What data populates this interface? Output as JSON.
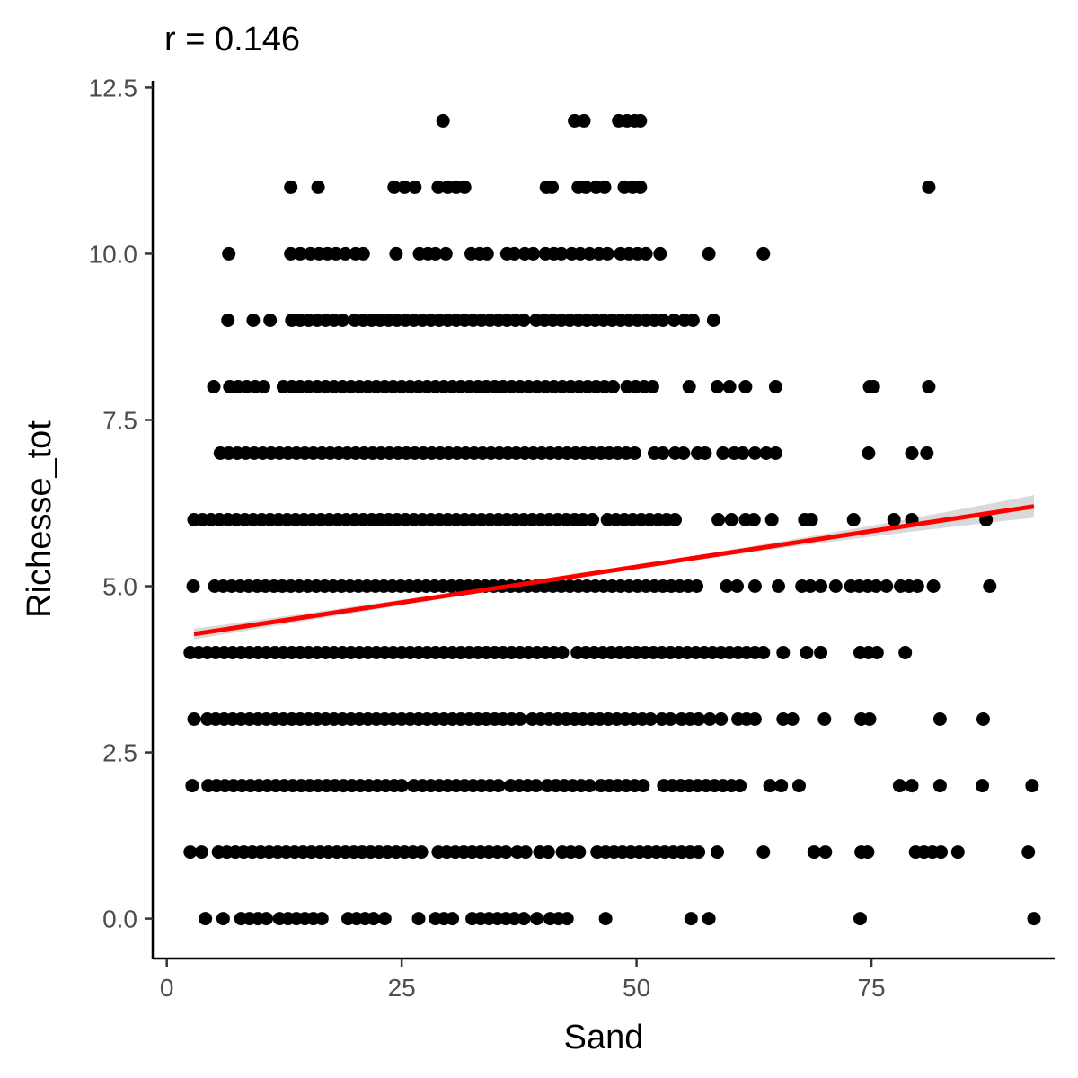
{
  "chart_data": {
    "type": "scatter",
    "title": "r = 0.146",
    "xlabel": "Sand",
    "ylabel": "Richesse_tot",
    "xlim": [
      -1.5,
      94.5
    ],
    "ylim": [
      -0.6,
      12.6
    ],
    "x_ticks": [
      0,
      25,
      50,
      75
    ],
    "x_tick_labels": [
      "0",
      "25",
      "50",
      "75"
    ],
    "y_ticks": [
      0,
      2.5,
      5,
      7.5,
      10,
      12.5
    ],
    "y_tick_labels": [
      "0.0",
      "2.5",
      "5.0",
      "7.5",
      "10.0",
      "12.5"
    ],
    "grid": false,
    "colors": {
      "points": "#000000",
      "fit_line": "#ff0000",
      "confidence_band": "#bfbfbf"
    },
    "fit": {
      "method": "linear",
      "x": [
        2.9,
        92.3
      ],
      "y": [
        4.28,
        6.2
      ],
      "ci_halfwidth_at_ends": [
        0.08,
        0.17
      ],
      "ci_halfwidth_at_center": 0.03
    },
    "series": [
      {
        "points_by_y": [
          {
            "y": 12,
            "x": [
              29.4,
              43.4,
              44.4,
              48.1,
              49.0,
              49.8,
              50.4
            ]
          },
          {
            "y": 11,
            "x": [
              13.2,
              16.1,
              24.2,
              25.3,
              26.4,
              28.9,
              29.9,
              30.8,
              31.7,
              40.4,
              41.0,
              43.8,
              44.6,
              45.7,
              46.6,
              48.7,
              49.6,
              50.4,
              81.1
            ]
          },
          {
            "y": 10,
            "x": [
              6.6,
              13.2,
              14.2,
              15.3,
              16.2,
              17.1,
              18.0,
              19.0,
              20.1,
              20.9,
              24.4,
              26.9,
              27.8,
              28.6,
              29.7,
              32.4,
              33.3,
              34.1,
              36.2,
              37.0,
              38.1,
              39.0,
              40.3,
              41.2,
              42.0,
              43.1,
              44.0,
              45.0,
              46.0,
              46.9,
              48.3,
              49.2,
              50.1,
              51.0,
              52.5,
              57.7,
              63.5
            ]
          },
          {
            "y": 9,
            "x": [
              6.5,
              9.2,
              11.0,
              13.3,
              14.2,
              15.1,
              16.0,
              16.9,
              17.8,
              18.7,
              20.0,
              20.9,
              21.8,
              22.7,
              23.6,
              24.5,
              25.4,
              26.3,
              27.2,
              28.1,
              29.0,
              29.9,
              30.8,
              31.7,
              32.6,
              33.5,
              34.4,
              35.3,
              36.2,
              37.1,
              38.0,
              39.3,
              40.2,
              41.1,
              42.0,
              42.9,
              43.8,
              44.7,
              45.6,
              46.5,
              47.4,
              48.3,
              49.2,
              50.1,
              51.0,
              51.9,
              52.8,
              54.0,
              55.1,
              56.0,
              58.2
            ]
          },
          {
            "y": 8,
            "x": [
              5.0,
              6.7,
              7.6,
              8.5,
              9.4,
              10.3,
              12.4,
              13.3,
              14.2,
              15.1,
              16.0,
              16.9,
              17.8,
              18.7,
              19.6,
              20.5,
              21.4,
              22.3,
              23.2,
              24.1,
              25.0,
              25.9,
              26.8,
              27.7,
              28.6,
              29.5,
              30.4,
              31.3,
              32.2,
              33.1,
              34.0,
              34.9,
              35.8,
              36.7,
              37.6,
              38.5,
              39.4,
              40.3,
              41.2,
              42.1,
              43.0,
              43.9,
              44.8,
              45.7,
              46.6,
              47.5,
              49.0,
              49.9,
              50.8,
              51.7,
              55.6,
              58.6,
              59.9,
              61.6,
              64.8,
              74.8,
              75.2,
              81.1
            ]
          },
          {
            "y": 7,
            "x": [
              5.7,
              6.6,
              7.5,
              8.4,
              9.3,
              10.2,
              11.1,
              12.0,
              12.9,
              13.8,
              14.7,
              15.6,
              16.5,
              17.4,
              18.3,
              19.2,
              20.1,
              21.0,
              21.9,
              22.8,
              23.7,
              24.6,
              25.5,
              26.4,
              27.3,
              28.2,
              29.1,
              30.0,
              30.9,
              31.8,
              32.7,
              33.6,
              34.5,
              35.4,
              36.3,
              37.2,
              38.1,
              39.0,
              39.9,
              40.8,
              41.7,
              42.6,
              43.5,
              44.4,
              45.3,
              46.2,
              47.1,
              48.0,
              48.9,
              49.8,
              51.9,
              52.8,
              54.1,
              55.0,
              56.5,
              57.3,
              59.2,
              60.4,
              61.3,
              62.6,
              63.8,
              64.8,
              74.7,
              79.3,
              80.9
            ]
          },
          {
            "y": 6,
            "x": [
              2.9,
              3.8,
              4.7,
              5.6,
              6.5,
              7.4,
              8.3,
              9.2,
              10.1,
              11.0,
              11.9,
              12.8,
              13.7,
              14.6,
              15.5,
              16.4,
              17.3,
              18.2,
              19.1,
              20.0,
              20.9,
              21.8,
              22.7,
              23.6,
              24.5,
              25.4,
              26.3,
              27.2,
              28.1,
              29.0,
              29.9,
              30.8,
              31.7,
              32.6,
              33.5,
              34.4,
              35.3,
              36.2,
              37.1,
              38.0,
              38.9,
              39.8,
              40.7,
              41.6,
              42.5,
              43.4,
              44.3,
              45.3,
              46.9,
              47.8,
              48.7,
              49.6,
              50.5,
              51.4,
              52.3,
              53.2,
              54.1,
              58.7,
              60.1,
              61.6,
              62.5,
              64.4,
              67.9,
              68.6,
              73.1,
              77.4,
              79.3,
              87.2
            ]
          },
          {
            "y": 5,
            "x": [
              2.8,
              5.1,
              6.0,
              6.9,
              7.8,
              8.7,
              9.6,
              10.5,
              11.4,
              12.3,
              13.2,
              14.1,
              15.0,
              15.9,
              16.8,
              17.7,
              18.6,
              19.5,
              20.4,
              21.3,
              22.2,
              23.1,
              24.0,
              24.9,
              25.8,
              26.7,
              27.6,
              28.5,
              29.4,
              30.3,
              31.2,
              32.1,
              33.0,
              33.9,
              34.8,
              35.7,
              36.6,
              37.5,
              38.4,
              39.3,
              40.2,
              41.1,
              42.0,
              42.9,
              43.8,
              44.7,
              45.6,
              46.5,
              47.4,
              48.3,
              49.2,
              50.1,
              51.0,
              51.9,
              52.8,
              53.7,
              54.6,
              55.5,
              56.4,
              59.6,
              60.7,
              62.6,
              65.1,
              67.6,
              68.5,
              69.6,
              71.2,
              72.8,
              73.7,
              74.6,
              75.5,
              76.6,
              78.1,
              79.0,
              79.9,
              81.6,
              87.6
            ]
          },
          {
            "y": 4,
            "x": [
              2.5,
              3.4,
              4.3,
              5.2,
              6.1,
              7.0,
              7.9,
              8.8,
              9.7,
              10.6,
              11.5,
              12.4,
              13.3,
              14.2,
              15.1,
              16.0,
              16.9,
              17.8,
              18.7,
              19.6,
              20.5,
              21.4,
              22.3,
              23.2,
              24.1,
              25.0,
              25.9,
              26.8,
              27.7,
              28.6,
              29.5,
              30.4,
              31.3,
              32.2,
              33.1,
              34.0,
              34.9,
              35.8,
              36.7,
              37.6,
              38.5,
              39.4,
              40.3,
              41.2,
              42.1,
              43.7,
              44.6,
              45.5,
              46.4,
              47.3,
              48.2,
              49.1,
              50.0,
              50.9,
              51.8,
              52.7,
              53.6,
              54.5,
              55.4,
              56.3,
              57.2,
              58.1,
              59.0,
              59.9,
              60.8,
              61.7,
              62.6,
              63.5,
              65.6,
              68.1,
              69.6,
              73.8,
              74.7,
              75.6,
              78.6
            ]
          },
          {
            "y": 3,
            "x": [
              2.9,
              4.3,
              5.2,
              6.1,
              7.0,
              7.9,
              8.8,
              9.7,
              10.6,
              11.5,
              12.4,
              13.3,
              14.2,
              15.1,
              16.0,
              16.9,
              17.8,
              18.7,
              19.6,
              20.5,
              21.4,
              22.3,
              23.2,
              24.1,
              25.0,
              25.9,
              26.8,
              27.7,
              28.6,
              29.5,
              30.4,
              31.3,
              32.2,
              33.1,
              34.0,
              34.9,
              35.8,
              36.7,
              37.6,
              38.9,
              39.8,
              40.7,
              41.6,
              42.5,
              43.4,
              44.3,
              45.2,
              46.1,
              47.0,
              47.9,
              48.8,
              49.7,
              50.6,
              51.5,
              52.7,
              53.6,
              54.8,
              55.7,
              56.6,
              57.8,
              59.0,
              60.8,
              61.7,
              62.6,
              65.6,
              66.6,
              70.0,
              73.9,
              74.8,
              82.3,
              86.9
            ]
          },
          {
            "y": 2,
            "x": [
              2.7,
              4.4,
              5.3,
              6.2,
              7.1,
              8.0,
              8.9,
              9.8,
              10.7,
              11.6,
              12.5,
              13.4,
              14.3,
              15.2,
              16.1,
              17.0,
              17.9,
              18.8,
              19.7,
              20.6,
              21.5,
              22.4,
              23.3,
              24.2,
              25.0,
              26.3,
              27.2,
              28.1,
              29.0,
              29.9,
              30.8,
              31.7,
              32.6,
              33.5,
              34.4,
              35.3,
              36.6,
              37.5,
              38.4,
              39.3,
              40.5,
              41.4,
              42.3,
              43.2,
              44.1,
              45.0,
              46.2,
              47.1,
              48.0,
              48.9,
              49.8,
              50.7,
              52.9,
              53.8,
              54.7,
              55.6,
              56.5,
              57.4,
              58.3,
              59.2,
              60.1,
              61.0,
              64.2,
              65.4,
              67.3,
              78.0,
              79.3,
              82.3,
              86.8,
              92.1
            ]
          },
          {
            "y": 1,
            "x": [
              2.5,
              3.7,
              5.5,
              6.4,
              7.3,
              8.2,
              9.1,
              10.0,
              10.9,
              11.8,
              12.7,
              13.6,
              14.5,
              15.4,
              16.3,
              17.2,
              18.1,
              19.0,
              19.9,
              20.8,
              21.7,
              22.6,
              23.5,
              24.4,
              25.3,
              26.2,
              27.1,
              28.9,
              29.8,
              30.7,
              31.6,
              32.5,
              33.4,
              34.3,
              35.2,
              36.1,
              37.3,
              38.2,
              39.7,
              40.6,
              42.1,
              43.0,
              43.9,
              45.8,
              46.7,
              47.6,
              48.5,
              49.4,
              50.3,
              51.2,
              52.1,
              53.0,
              53.9,
              54.8,
              55.7,
              56.6,
              58.6,
              63.5,
              68.9,
              70.1,
              73.9,
              74.6,
              79.7,
              80.6,
              81.5,
              82.4,
              84.2,
              91.7
            ]
          },
          {
            "y": 0,
            "x": [
              4.1,
              6.0,
              7.9,
              8.8,
              9.7,
              10.6,
              12.0,
              12.9,
              13.8,
              14.7,
              15.6,
              16.5,
              19.3,
              20.2,
              21.1,
              22.0,
              23.2,
              26.8,
              28.6,
              29.5,
              30.4,
              32.5,
              33.4,
              34.3,
              35.2,
              36.1,
              37.0,
              38.0,
              39.4,
              40.8,
              41.7,
              42.6,
              46.7,
              55.8,
              57.7,
              73.8,
              92.3
            ]
          }
        ]
      }
    ]
  }
}
